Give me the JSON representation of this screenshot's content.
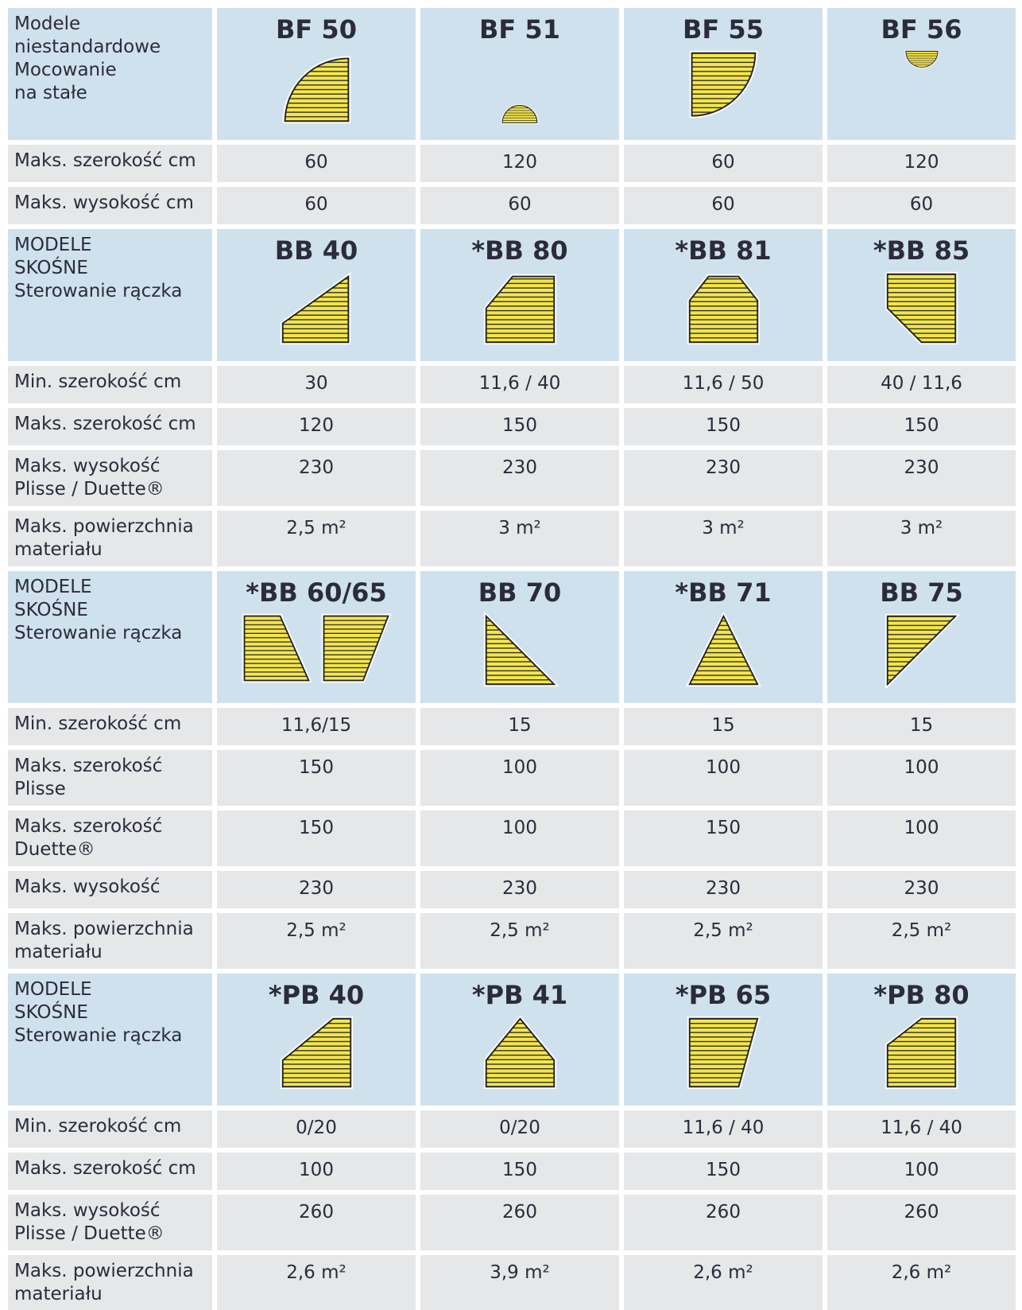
{
  "sections": [
    {
      "header": {
        "label": [
          "Modele",
          "niestandardowe",
          "Mocowanie",
          "na stałe"
        ],
        "models": [
          "BF 50",
          "BF 51",
          "BF 55",
          "BF 56"
        ]
      },
      "rows": [
        {
          "label": [
            "Maks. szerokość cm"
          ],
          "values": [
            "60",
            "120",
            "60",
            "120"
          ]
        },
        {
          "label": [
            "Maks. wysokość cm"
          ],
          "values": [
            "60",
            "60",
            "60",
            "60"
          ]
        }
      ]
    },
    {
      "header": {
        "label": [
          "MODELE",
          "SKOŚNE",
          "Sterowanie rączka"
        ],
        "models": [
          "BB 40",
          "*BB 80",
          "*BB 81",
          "*BB 85"
        ]
      },
      "rows": [
        {
          "label": [
            "Min. szerokość cm"
          ],
          "values": [
            "30",
            "11,6 / 40",
            "11,6 / 50",
            "40 / 11,6"
          ]
        },
        {
          "label": [
            "Maks. szerokość cm"
          ],
          "values": [
            "120",
            "150",
            "150",
            "150"
          ]
        },
        {
          "label": [
            "Maks. wysokość",
            "Plisse / Duette®"
          ],
          "values": [
            "230",
            "230",
            "230",
            "230"
          ]
        },
        {
          "label": [
            "Maks. powierzchnia",
            "materiału"
          ],
          "values": [
            "2,5 m²",
            "3 m²",
            "3 m²",
            "3 m²"
          ]
        }
      ]
    },
    {
      "header": {
        "label": [
          "MODELE",
          "SKOŚNE",
          "Sterowanie rączka"
        ],
        "models": [
          "*BB 60/65",
          "BB 70",
          "*BB 71",
          "BB 75"
        ]
      },
      "rows": [
        {
          "label": [
            "Min. szerokość cm"
          ],
          "values": [
            "11,6/15",
            "15",
            "15",
            "15"
          ]
        },
        {
          "label": [
            "Maks. szerokość",
            "Plisse"
          ],
          "values": [
            "150",
            "100",
            "100",
            "100"
          ]
        },
        {
          "label": [
            "Maks. szerokość",
            "Duette®"
          ],
          "values": [
            "150",
            "100",
            "150",
            "100"
          ]
        },
        {
          "label": [
            "Maks. wysokość"
          ],
          "values": [
            "230",
            "230",
            "230",
            "230"
          ]
        },
        {
          "label": [
            "Maks. powierzchnia",
            "materiału"
          ],
          "values": [
            "2,5 m²",
            "2,5 m²",
            "2,5 m²",
            "2,5 m²"
          ]
        }
      ]
    },
    {
      "header": {
        "label": [
          "MODELE",
          "SKOŚNE",
          "Sterowanie rączka"
        ],
        "models": [
          "*PB 40",
          "*PB 41",
          "*PB 65",
          "*PB 80"
        ]
      },
      "rows": [
        {
          "label": [
            "Min. szerokość cm"
          ],
          "values": [
            "0/20",
            "0/20",
            "11,6 / 40",
            "11,6 / 40"
          ]
        },
        {
          "label": [
            "Maks. szerokość cm"
          ],
          "values": [
            "100",
            "150",
            "150",
            "100"
          ]
        },
        {
          "label": [
            "Maks. wysokość",
            "Plisse / Duette®"
          ],
          "values": [
            "260",
            "260",
            "260",
            "260"
          ]
        },
        {
          "label": [
            "Maks. powierzchnia",
            "materiału"
          ],
          "values": [
            "2,6 m²",
            "3,9 m²",
            "2,6 m²",
            "2,6 m²"
          ]
        }
      ]
    }
  ]
}
